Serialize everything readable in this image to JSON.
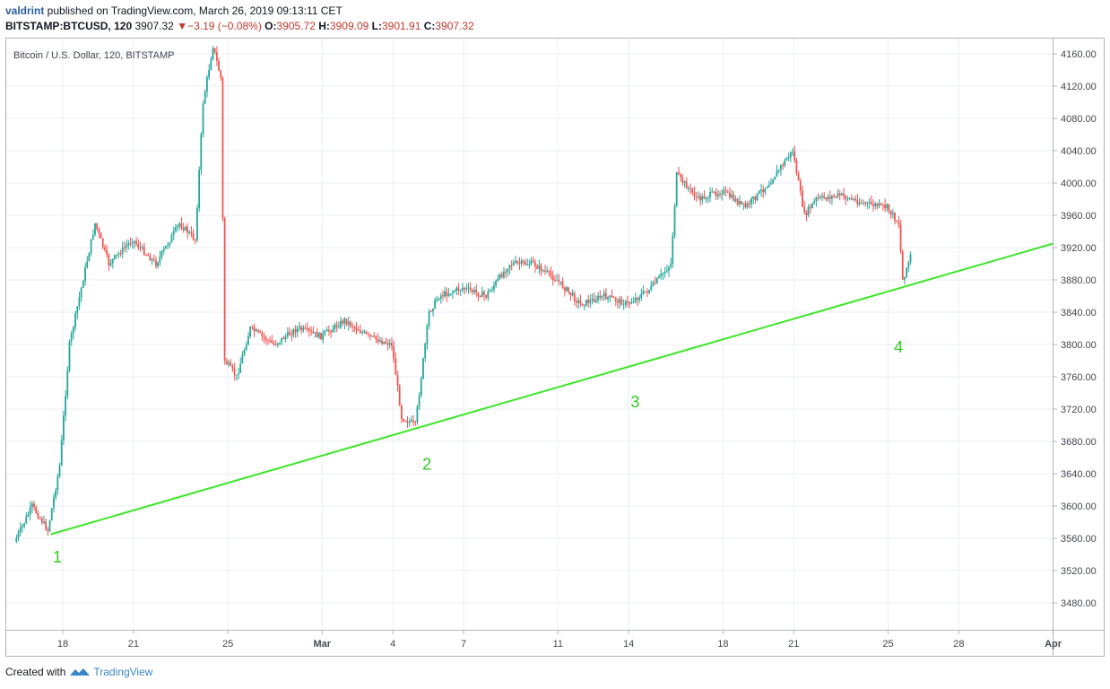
{
  "header": {
    "user": "valdrint",
    "published_text": " published on TradingView.com, March 26, 2019 09:13:11 CET",
    "symbol": "BITSTAMP:BTCUSD, 120",
    "last": "3907.32",
    "change": "−3.19 (−0.08%)",
    "o_label": "O:",
    "o_value": "3905.72",
    "h_label": "H:",
    "h_value": "3909.09",
    "l_label": "L:",
    "l_value": "3901.91",
    "c_label": "C:",
    "c_value": "3907.32"
  },
  "footer": {
    "created_with": "Created with",
    "brand": "TradingView"
  },
  "colors": {
    "up": "#26a69a",
    "down": "#ef5350",
    "trendline": "#3ee62a",
    "grid": "#e9eef3",
    "label": "#2ecc1d"
  },
  "chart_data": {
    "type": "candlestick",
    "legend": "Bitcoin / U.S. Dollar, 120, BITSTAMP",
    "y_ticks": [
      "3480.00",
      "3520.00",
      "3560.00",
      "3600.00",
      "3640.00",
      "3680.00",
      "3720.00",
      "3760.00",
      "3800.00",
      "3840.00",
      "3880.00",
      "3920.00",
      "3960.00",
      "4000.00",
      "4040.00",
      "4080.00",
      "4120.00",
      "4160.00"
    ],
    "x_ticks": [
      "18",
      "21",
      "25",
      "Mar",
      "4",
      "7",
      "11",
      "14",
      "18",
      "21",
      "25",
      "28",
      "Apr"
    ],
    "ylim": [
      3435,
      4200
    ],
    "grid": true,
    "price_path": [
      {
        "date": "2019-02-16",
        "price": 3555
      },
      {
        "date": "2019-02-16T18",
        "price": 3600
      },
      {
        "date": "2019-02-17T10",
        "price": 3570
      },
      {
        "date": "2019-02-17T22",
        "price": 3650
      },
      {
        "date": "2019-02-18T08",
        "price": 3800
      },
      {
        "date": "2019-02-18T20",
        "price": 3870
      },
      {
        "date": "2019-02-19T10",
        "price": 3950
      },
      {
        "date": "2019-02-20",
        "price": 3900
      },
      {
        "date": "2019-02-21",
        "price": 3930
      },
      {
        "date": "2019-02-22",
        "price": 3900
      },
      {
        "date": "2019-02-23",
        "price": 3950
      },
      {
        "date": "2019-02-23T16",
        "price": 3930
      },
      {
        "date": "2019-02-24T00",
        "price": 4100
      },
      {
        "date": "2019-02-24T10",
        "price": 4170
      },
      {
        "date": "2019-02-24T18",
        "price": 4130
      },
      {
        "date": "2019-02-24T22",
        "price": 3780
      },
      {
        "date": "2019-02-25T10",
        "price": 3760
      },
      {
        "date": "2019-02-26",
        "price": 3820
      },
      {
        "date": "2019-02-27",
        "price": 3800
      },
      {
        "date": "2019-02-28",
        "price": 3820
      },
      {
        "date": "2019-03-01",
        "price": 3810
      },
      {
        "date": "2019-03-02",
        "price": 3830
      },
      {
        "date": "2019-03-03",
        "price": 3810
      },
      {
        "date": "2019-03-04",
        "price": 3800
      },
      {
        "date": "2019-03-04T10",
        "price": 3710
      },
      {
        "date": "2019-03-05",
        "price": 3700
      },
      {
        "date": "2019-03-05T14",
        "price": 3840
      },
      {
        "date": "2019-03-06",
        "price": 3860
      },
      {
        "date": "2019-03-07",
        "price": 3870
      },
      {
        "date": "2019-03-08",
        "price": 3860
      },
      {
        "date": "2019-03-09",
        "price": 3900
      },
      {
        "date": "2019-03-10",
        "price": 3900
      },
      {
        "date": "2019-03-11",
        "price": 3880
      },
      {
        "date": "2019-03-12",
        "price": 3850
      },
      {
        "date": "2019-03-13",
        "price": 3860
      },
      {
        "date": "2019-03-14",
        "price": 3850
      },
      {
        "date": "2019-03-15",
        "price": 3870
      },
      {
        "date": "2019-03-15T20",
        "price": 3900
      },
      {
        "date": "2019-03-16T02",
        "price": 4010
      },
      {
        "date": "2019-03-17",
        "price": 3980
      },
      {
        "date": "2019-03-18",
        "price": 3990
      },
      {
        "date": "2019-03-19",
        "price": 3970
      },
      {
        "date": "2019-03-20",
        "price": 4000
      },
      {
        "date": "2019-03-21",
        "price": 4040
      },
      {
        "date": "2019-03-21T12",
        "price": 3960
      },
      {
        "date": "2019-03-22",
        "price": 3980
      },
      {
        "date": "2019-03-23",
        "price": 3985
      },
      {
        "date": "2019-03-24",
        "price": 3975
      },
      {
        "date": "2019-03-25",
        "price": 3970
      },
      {
        "date": "2019-03-25T12",
        "price": 3950
      },
      {
        "date": "2019-03-25T16",
        "price": 3880
      },
      {
        "date": "2019-03-26",
        "price": 3910
      }
    ],
    "trendline": {
      "from": {
        "date": "2019-02-17T12",
        "price": 3565
      },
      "to": {
        "date": "2019-04-01",
        "price": 3925
      }
    },
    "annotations": [
      {
        "text": "1",
        "date": "2019-02-17T14",
        "price": 3530
      },
      {
        "text": "2",
        "date": "2019-03-05T06",
        "price": 3645
      },
      {
        "text": "3",
        "date": "2019-03-14T02",
        "price": 3722
      },
      {
        "text": "4",
        "date": "2019-03-25T06",
        "price": 3790
      }
    ]
  }
}
